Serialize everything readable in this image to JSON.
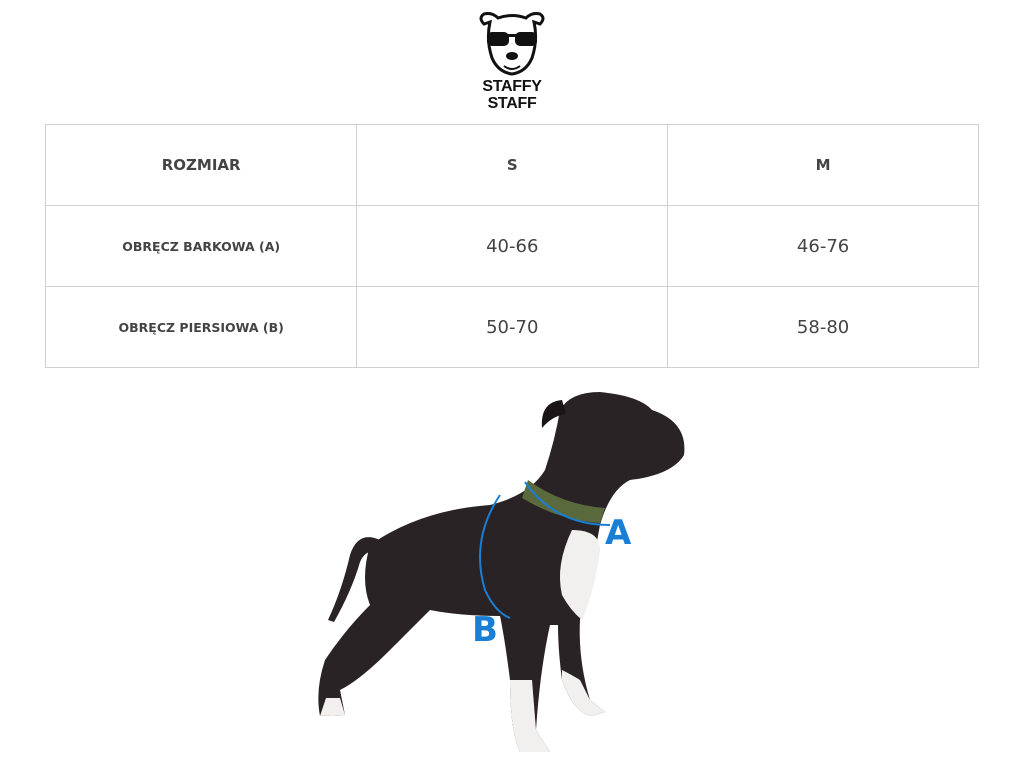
{
  "logo": {
    "line1": "STAFFY",
    "line2": "STAFF",
    "icon": "dog-with-sunglasses-logo"
  },
  "table": {
    "headers": [
      "ROZMIAR",
      "S",
      "M"
    ],
    "rows": [
      {
        "label": "OBRĘCZ BARKOWA (A)",
        "values": [
          "40-66",
          "46-76"
        ]
      },
      {
        "label": "OBRĘCZ PIERSIOWA (B)",
        "values": [
          "50-70",
          "58-80"
        ]
      }
    ]
  },
  "figure": {
    "label_a": "A",
    "label_b": "B",
    "accent_color": "#1a7fd4"
  }
}
